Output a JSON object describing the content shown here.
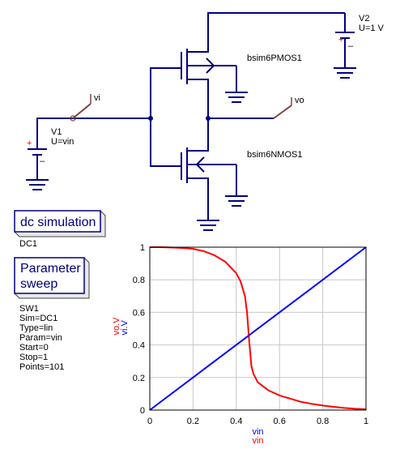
{
  "schematic": {
    "v1": {
      "name": "V1",
      "value": "U=vin"
    },
    "v2": {
      "name": "V2",
      "value": "U=1 V"
    },
    "pmos": {
      "name": "bsim6PMOS1"
    },
    "nmos": {
      "name": "bsim6NMOS1"
    },
    "node_vi": "vi",
    "node_vo": "vo",
    "plus_sign": "+",
    "minus_sign": "–"
  },
  "dc_sim": {
    "title": "dc simulation",
    "name": "DC1"
  },
  "param_sweep": {
    "title_line1": "Parameter",
    "title_line2": "sweep",
    "lines": [
      "SW1",
      "Sim=DC1",
      "Type=lin",
      "Param=vin",
      "Start=0",
      "Stop=1",
      "Points=101"
    ]
  },
  "colors": {
    "wire": "#00007f",
    "red": "#ff0000",
    "blue": "#0000ff",
    "grid": "#c8c8c8"
  },
  "chart_data": {
    "type": "line",
    "xlim": [
      0,
      1
    ],
    "ylim": [
      0,
      1
    ],
    "x_ticks": [
      "0",
      "0.2",
      "0.4",
      "0.6",
      "0.8",
      "1"
    ],
    "y_ticks": [
      "0",
      "0.2",
      "0.4",
      "0.6",
      "0.8",
      "1"
    ],
    "xlabel_1": "vin",
    "xlabel_2": "vin",
    "ylabel_1": "vo.V",
    "ylabel_2": "vi.V",
    "grid": true,
    "series": [
      {
        "name": "vo.V",
        "color": "#ff0000",
        "x": [
          0,
          0.05,
          0.1,
          0.15,
          0.2,
          0.25,
          0.3,
          0.35,
          0.4,
          0.42,
          0.44,
          0.45,
          0.46,
          0.47,
          0.48,
          0.5,
          0.55,
          0.6,
          0.65,
          0.7,
          0.75,
          0.8,
          0.85,
          0.9,
          0.95,
          1
        ],
        "values": [
          1,
          1,
          0.998,
          0.995,
          0.99,
          0.975,
          0.95,
          0.91,
          0.84,
          0.79,
          0.7,
          0.6,
          0.42,
          0.27,
          0.22,
          0.17,
          0.12,
          0.09,
          0.07,
          0.05,
          0.038,
          0.028,
          0.02,
          0.013,
          0.008,
          0.005
        ]
      },
      {
        "name": "vi.V",
        "color": "#0000ff",
        "x": [
          0,
          1
        ],
        "values": [
          0,
          1
        ]
      }
    ]
  }
}
